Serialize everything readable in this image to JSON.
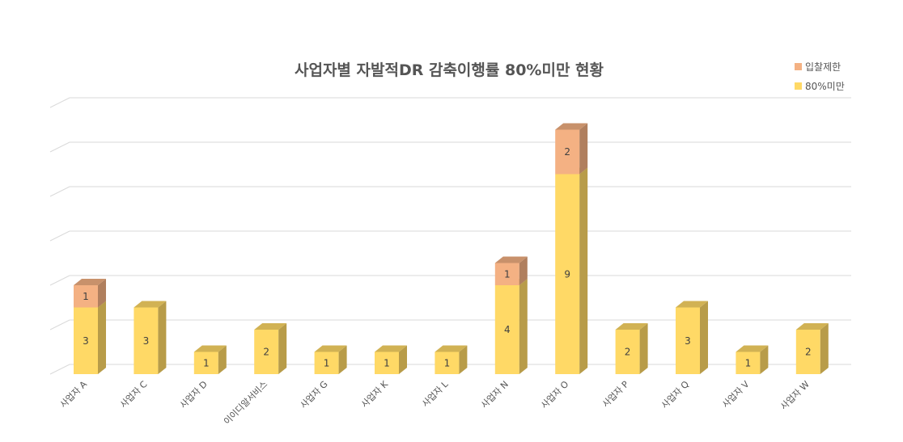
{
  "chart_data": {
    "type": "bar",
    "stacked": true,
    "title": "사업자별 자발적DR 감축이행률 80%미만 현황",
    "categories": [
      "사업자 A",
      "사업자 C",
      "사업자 D",
      "이이디알서비스",
      "사업자 G",
      "사업자 K",
      "사업자 L",
      "사업자 N",
      "사업자 O",
      "사업자 P",
      "사업자 Q",
      "사업자 V",
      "사업자 W"
    ],
    "series": [
      {
        "name": "80%미만",
        "color": "#FFD966",
        "values": [
          3,
          3,
          1,
          2,
          1,
          1,
          1,
          4,
          9,
          2,
          3,
          1,
          2
        ]
      },
      {
        "name": "입찰제한",
        "color": "#F4B183",
        "values": [
          1,
          0,
          0,
          0,
          0,
          0,
          0,
          1,
          2,
          0,
          0,
          0,
          0
        ]
      }
    ],
    "ylim": [
      0,
      12
    ],
    "grid": true,
    "legend_position": "top-right"
  }
}
